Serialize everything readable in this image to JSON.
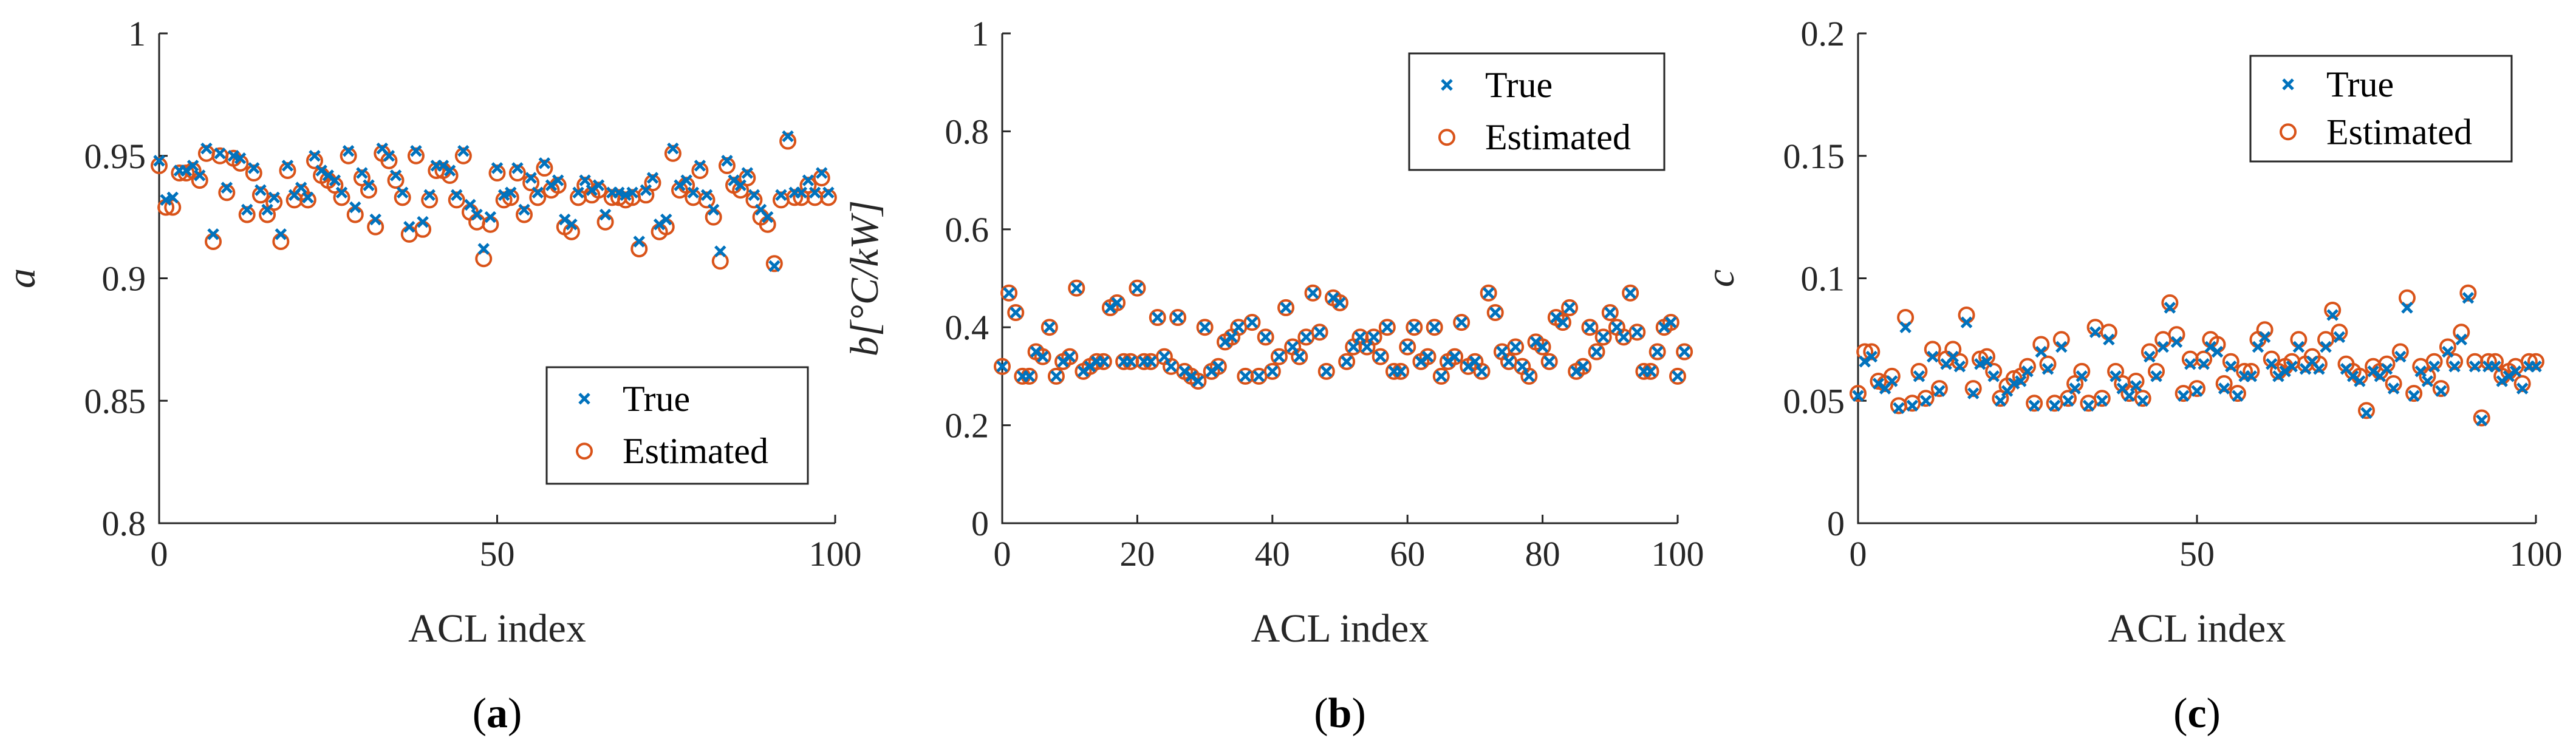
{
  "colors": {
    "true_series": "#0072bd",
    "estimated_series": "#d95319",
    "axis": "#262626"
  },
  "legend": {
    "true_label": "True",
    "estimated_label": "Estimated"
  },
  "chart_data": [
    {
      "id": "a",
      "type": "scatter",
      "ylabel": "a",
      "xlabel": "ACL index",
      "xlim": [
        0,
        100
      ],
      "ylim": [
        0.8,
        1
      ],
      "xticks": [
        "0",
        "50",
        "100"
      ],
      "yticks": [
        "0.8",
        "0.85",
        "0.9",
        "0.95",
        "1"
      ],
      "legend_position": "lower-right",
      "caption": {
        "open": "(",
        "letter": "a",
        "close": ")"
      },
      "series": [
        {
          "name": "True",
          "marker": "x",
          "values": [
            0.948,
            0.932,
            0.933,
            0.944,
            0.944,
            0.946,
            0.942,
            0.953,
            0.918,
            0.951,
            0.937,
            0.95,
            0.949,
            0.928,
            0.945,
            0.936,
            0.928,
            0.933,
            0.918,
            0.946,
            0.934,
            0.937,
            0.933,
            0.95,
            0.944,
            0.942,
            0.94,
            0.935,
            0.952,
            0.929,
            0.943,
            0.938,
            0.924,
            0.953,
            0.95,
            0.942,
            0.935,
            0.921,
            0.952,
            0.923,
            0.934,
            0.946,
            0.946,
            0.944,
            0.934,
            0.952,
            0.93,
            0.926,
            0.912,
            0.925,
            0.945,
            0.934,
            0.935,
            0.945,
            0.928,
            0.941,
            0.935,
            0.947,
            0.938,
            0.94,
            0.924,
            0.922,
            0.935,
            0.94,
            0.936,
            0.938,
            0.926,
            0.935,
            0.935,
            0.934,
            0.935,
            0.915,
            0.936,
            0.941,
            0.922,
            0.924,
            0.953,
            0.938,
            0.94,
            0.935,
            0.946,
            0.934,
            0.928,
            0.911,
            0.948,
            0.94,
            0.938,
            0.943,
            0.934,
            0.928,
            0.925,
            0.905,
            0.934,
            0.958,
            0.935,
            0.935,
            0.94,
            0.935,
            0.943,
            0.935
          ]
        },
        {
          "name": "Estimated",
          "marker": "o",
          "values": [
            0.946,
            0.929,
            0.929,
            0.943,
            0.943,
            0.944,
            0.94,
            0.951,
            0.915,
            0.95,
            0.935,
            0.949,
            0.947,
            0.926,
            0.943,
            0.934,
            0.926,
            0.931,
            0.915,
            0.944,
            0.932,
            0.935,
            0.932,
            0.948,
            0.942,
            0.94,
            0.938,
            0.933,
            0.95,
            0.926,
            0.941,
            0.936,
            0.921,
            0.951,
            0.948,
            0.94,
            0.933,
            0.918,
            0.95,
            0.92,
            0.932,
            0.944,
            0.944,
            0.942,
            0.932,
            0.95,
            0.927,
            0.923,
            0.908,
            0.922,
            0.943,
            0.932,
            0.933,
            0.943,
            0.926,
            0.939,
            0.933,
            0.945,
            0.936,
            0.938,
            0.921,
            0.919,
            0.933,
            0.938,
            0.934,
            0.936,
            0.923,
            0.933,
            0.933,
            0.932,
            0.933,
            0.912,
            0.934,
            0.939,
            0.919,
            0.921,
            0.951,
            0.936,
            0.938,
            0.933,
            0.944,
            0.932,
            0.925,
            0.907,
            0.946,
            0.938,
            0.936,
            0.941,
            0.932,
            0.925,
            0.922,
            0.906,
            0.932,
            0.956,
            0.933,
            0.933,
            0.938,
            0.933,
            0.941,
            0.933
          ]
        }
      ]
    },
    {
      "id": "b",
      "type": "scatter",
      "ylabel": "b[°C/kW]",
      "xlabel": "ACL index",
      "xlim": [
        0,
        100
      ],
      "ylim": [
        0,
        1
      ],
      "xticks": [
        "0",
        "20",
        "40",
        "60",
        "80",
        "100"
      ],
      "yticks": [
        "0",
        "0.2",
        "0.4",
        "0.6",
        "0.8",
        "1"
      ],
      "legend_position": "top-right",
      "caption": {
        "open": "(",
        "letter": "b",
        "close": ")"
      },
      "series": [
        {
          "name": "True",
          "marker": "x",
          "values": [
            0.32,
            0.47,
            0.43,
            0.3,
            0.3,
            0.35,
            0.34,
            0.4,
            0.3,
            0.33,
            0.34,
            0.48,
            0.31,
            0.32,
            0.33,
            0.33,
            0.44,
            0.45,
            0.33,
            0.33,
            0.48,
            0.33,
            0.33,
            0.42,
            0.34,
            0.32,
            0.42,
            0.31,
            0.3,
            0.29,
            0.4,
            0.31,
            0.32,
            0.37,
            0.38,
            0.4,
            0.3,
            0.41,
            0.3,
            0.38,
            0.31,
            0.34,
            0.44,
            0.36,
            0.34,
            0.38,
            0.47,
            0.39,
            0.31,
            0.46,
            0.45,
            0.33,
            0.36,
            0.38,
            0.36,
            0.38,
            0.34,
            0.4,
            0.31,
            0.31,
            0.36,
            0.4,
            0.33,
            0.34,
            0.4,
            0.3,
            0.33,
            0.34,
            0.41,
            0.32,
            0.33,
            0.31,
            0.47,
            0.43,
            0.35,
            0.33,
            0.36,
            0.32,
            0.3,
            0.37,
            0.36,
            0.33,
            0.42,
            0.41,
            0.44,
            0.31,
            0.32,
            0.4,
            0.35,
            0.38,
            0.43,
            0.4,
            0.38,
            0.47,
            0.39,
            0.31,
            0.31,
            0.35,
            0.4,
            0.41,
            0.3,
            0.35
          ]
        },
        {
          "name": "Estimated",
          "marker": "o",
          "values": [
            0.32,
            0.47,
            0.43,
            0.3,
            0.3,
            0.35,
            0.34,
            0.4,
            0.3,
            0.33,
            0.34,
            0.48,
            0.31,
            0.32,
            0.33,
            0.33,
            0.44,
            0.45,
            0.33,
            0.33,
            0.48,
            0.33,
            0.33,
            0.42,
            0.34,
            0.32,
            0.42,
            0.31,
            0.3,
            0.29,
            0.4,
            0.31,
            0.32,
            0.37,
            0.38,
            0.4,
            0.3,
            0.41,
            0.3,
            0.38,
            0.31,
            0.34,
            0.44,
            0.36,
            0.34,
            0.38,
            0.47,
            0.39,
            0.31,
            0.46,
            0.45,
            0.33,
            0.36,
            0.38,
            0.36,
            0.38,
            0.34,
            0.4,
            0.31,
            0.31,
            0.36,
            0.4,
            0.33,
            0.34,
            0.4,
            0.3,
            0.33,
            0.34,
            0.41,
            0.32,
            0.33,
            0.31,
            0.47,
            0.43,
            0.35,
            0.33,
            0.36,
            0.32,
            0.3,
            0.37,
            0.36,
            0.33,
            0.42,
            0.41,
            0.44,
            0.31,
            0.32,
            0.4,
            0.35,
            0.38,
            0.43,
            0.4,
            0.38,
            0.47,
            0.39,
            0.31,
            0.31,
            0.35,
            0.4,
            0.41,
            0.3,
            0.35
          ]
        }
      ]
    },
    {
      "id": "c",
      "type": "scatter",
      "ylabel": "c",
      "xlabel": "ACL index",
      "xlim": [
        0,
        100
      ],
      "ylim": [
        0,
        0.2
      ],
      "xticks": [
        "0",
        "50",
        "100"
      ],
      "yticks": [
        "0",
        "0.05",
        "0.1",
        "0.15",
        "0.2"
      ],
      "legend_position": "top-right",
      "caption": {
        "open": "(",
        "letter": "c",
        "close": ")"
      },
      "series": [
        {
          "name": "True",
          "marker": "x",
          "values": [
            0.052,
            0.066,
            0.068,
            0.057,
            0.055,
            0.058,
            0.047,
            0.08,
            0.048,
            0.06,
            0.05,
            0.068,
            0.054,
            0.065,
            0.068,
            0.064,
            0.082,
            0.053,
            0.065,
            0.066,
            0.06,
            0.05,
            0.054,
            0.057,
            0.058,
            0.062,
            0.048,
            0.07,
            0.063,
            0.048,
            0.072,
            0.05,
            0.055,
            0.06,
            0.048,
            0.078,
            0.05,
            0.075,
            0.06,
            0.055,
            0.052,
            0.056,
            0.05,
            0.068,
            0.06,
            0.072,
            0.088,
            0.074,
            0.052,
            0.065,
            0.054,
            0.065,
            0.072,
            0.07,
            0.055,
            0.064,
            0.052,
            0.06,
            0.06,
            0.072,
            0.076,
            0.065,
            0.06,
            0.062,
            0.064,
            0.072,
            0.063,
            0.066,
            0.063,
            0.072,
            0.085,
            0.076,
            0.063,
            0.06,
            0.058,
            0.045,
            0.062,
            0.06,
            0.063,
            0.055,
            0.068,
            0.088,
            0.052,
            0.062,
            0.058,
            0.064,
            0.054,
            0.07,
            0.064,
            0.075,
            0.092,
            0.064,
            0.042,
            0.064,
            0.064,
            0.058,
            0.06,
            0.062,
            0.055,
            0.064,
            0.064
          ]
        },
        {
          "name": "Estimated",
          "marker": "o",
          "values": [
            0.053,
            0.07,
            0.07,
            0.058,
            0.057,
            0.06,
            0.048,
            0.084,
            0.049,
            0.062,
            0.051,
            0.071,
            0.055,
            0.067,
            0.071,
            0.066,
            0.085,
            0.055,
            0.067,
            0.068,
            0.062,
            0.051,
            0.056,
            0.059,
            0.06,
            0.064,
            0.049,
            0.073,
            0.065,
            0.049,
            0.075,
            0.051,
            0.057,
            0.062,
            0.049,
            0.08,
            0.051,
            0.078,
            0.062,
            0.057,
            0.053,
            0.058,
            0.051,
            0.07,
            0.062,
            0.075,
            0.09,
            0.077,
            0.053,
            0.067,
            0.055,
            0.067,
            0.075,
            0.073,
            0.057,
            0.066,
            0.053,
            0.062,
            0.062,
            0.075,
            0.079,
            0.067,
            0.062,
            0.064,
            0.066,
            0.075,
            0.065,
            0.068,
            0.065,
            0.075,
            0.087,
            0.078,
            0.065,
            0.062,
            0.06,
            0.046,
            0.064,
            0.062,
            0.065,
            0.057,
            0.07,
            0.092,
            0.053,
            0.064,
            0.06,
            0.066,
            0.055,
            0.072,
            0.066,
            0.078,
            0.094,
            0.066,
            0.043,
            0.066,
            0.066,
            0.06,
            0.062,
            0.064,
            0.057,
            0.066,
            0.066
          ]
        }
      ]
    }
  ]
}
